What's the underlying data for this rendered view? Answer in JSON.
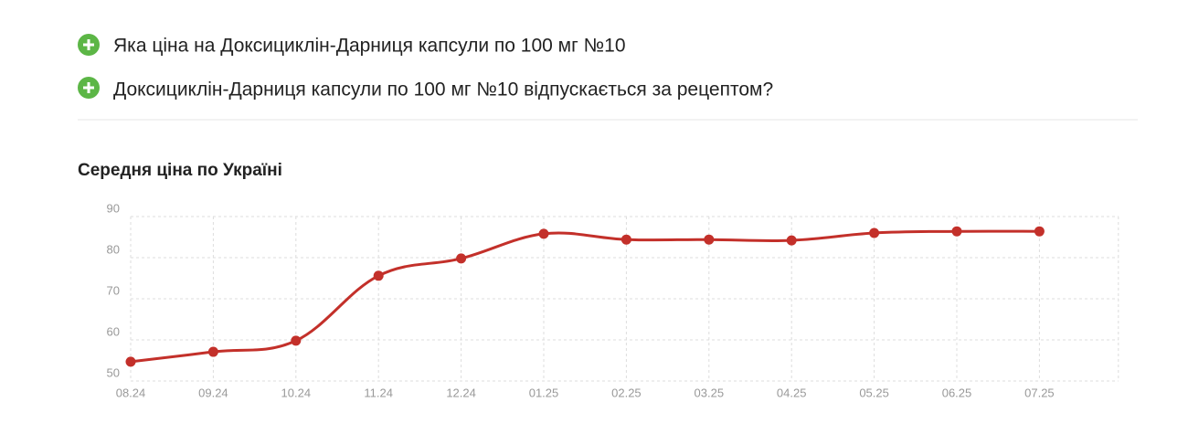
{
  "faq": {
    "items": [
      "Яка ціна на Доксициклін-Дарниця капсули по 100 мг №10",
      "Доксициклін-Дарниця капсули по 100 мг №10 відпускається за рецептом?"
    ]
  },
  "chart_data": {
    "type": "line",
    "title": "Середня ціна по Україні",
    "categories": [
      "08.24",
      "09.24",
      "10.24",
      "11.24",
      "12.24",
      "01.25",
      "02.25",
      "03.25",
      "04.25",
      "05.25",
      "06.25",
      "07.25"
    ],
    "values": [
      54.7,
      57.1,
      59.8,
      75.6,
      79.8,
      85.8,
      84.4,
      84.4,
      84.2,
      86.0,
      86.4,
      86.4
    ],
    "color": "#c3302a",
    "ylim": [
      50,
      90
    ],
    "yticks": [
      50,
      60,
      70,
      80,
      90
    ],
    "grid": true
  }
}
